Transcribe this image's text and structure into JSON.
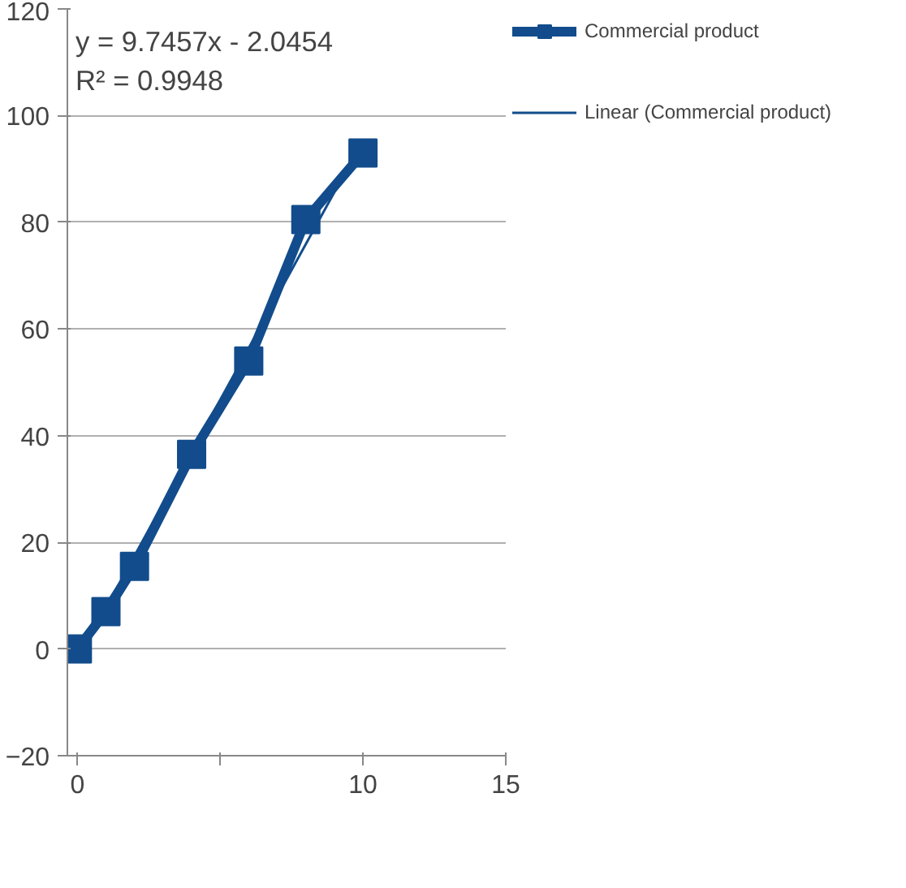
{
  "chart_data": {
    "type": "line",
    "xlim": [
      -0.35,
      15
    ],
    "xticks": [
      0,
      {
        "value": 5,
        "label": null
      },
      10,
      15
    ],
    "ylim": [
      -20,
      120
    ],
    "yticks": [
      -20,
      0,
      20,
      40,
      60,
      80,
      100,
      120
    ],
    "grid": "y",
    "legend": "right",
    "marker": "square",
    "annotations": [
      "y = 9.7457x - 2.0454",
      "R² = 0.9948"
    ],
    "series": [
      {
        "name": "Commercial product",
        "color": "#124c8c",
        "x": [
          0,
          1,
          2,
          4,
          6,
          8,
          10
        ],
        "values": [
          0,
          7,
          15.5,
          36.5,
          54,
          80.5,
          93
        ]
      },
      {
        "name": "Linear (Commercial product)",
        "type": "line",
        "marker": "none",
        "color": "#124c8c",
        "x": [
          0,
          10
        ],
        "values": [
          -2.0,
          95.4
        ]
      }
    ]
  }
}
